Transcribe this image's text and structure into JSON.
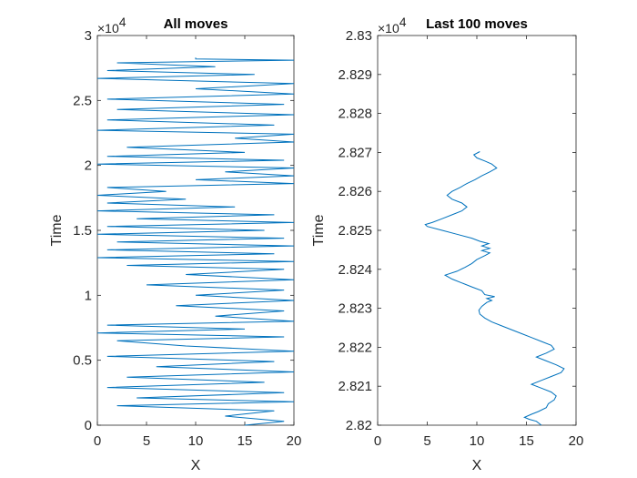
{
  "chart_data": [
    {
      "type": "line",
      "title": "All moves",
      "xlabel": "X",
      "ylabel": "Time",
      "xlim": [
        0,
        20
      ],
      "ylim": [
        0,
        30000
      ],
      "x_ticks": [
        "0",
        "5",
        "10",
        "15",
        "20"
      ],
      "y_ticks": [
        "0",
        "0.5",
        "1",
        "1.5",
        "2",
        "2.5",
        "3"
      ],
      "y_multiplier": "×10",
      "y_exponent": "4",
      "grid": false,
      "line_color": "#0072BD",
      "series": [
        {
          "trace": [
            {
              "y": 0,
              "x": 15
            },
            {
              "y": 300,
              "x": 19
            },
            {
              "y": 700,
              "x": 13
            },
            {
              "y": 1100,
              "x": 18
            },
            {
              "y": 1500,
              "x": 2
            },
            {
              "y": 1800,
              "x": 20
            },
            {
              "y": 2100,
              "x": 4
            },
            {
              "y": 2500,
              "x": 19
            },
            {
              "y": 2900,
              "x": 1
            },
            {
              "y": 3300,
              "x": 17
            },
            {
              "y": 3700,
              "x": 3
            },
            {
              "y": 4100,
              "x": 20
            },
            {
              "y": 4500,
              "x": 6
            },
            {
              "y": 4900,
              "x": 18
            },
            {
              "y": 5300,
              "x": 1
            },
            {
              "y": 5700,
              "x": 20
            },
            {
              "y": 6100,
              "x": 9
            },
            {
              "y": 6500,
              "x": 2
            },
            {
              "y": 6800,
              "x": 19
            },
            {
              "y": 7100,
              "x": 0
            },
            {
              "y": 7400,
              "x": 15
            },
            {
              "y": 7700,
              "x": 1
            },
            {
              "y": 8000,
              "x": 20
            },
            {
              "y": 8400,
              "x": 12
            },
            {
              "y": 8800,
              "x": 19
            },
            {
              "y": 9200,
              "x": 8
            },
            {
              "y": 9600,
              "x": 20
            },
            {
              "y": 10000,
              "x": 10
            },
            {
              "y": 10400,
              "x": 19
            },
            {
              "y": 10800,
              "x": 5
            },
            {
              "y": 11200,
              "x": 20
            },
            {
              "y": 11600,
              "x": 9
            },
            {
              "y": 12000,
              "x": 19
            },
            {
              "y": 12300,
              "x": 3
            },
            {
              "y": 12600,
              "x": 20
            },
            {
              "y": 12900,
              "x": 0
            },
            {
              "y": 13200,
              "x": 18
            },
            {
              "y": 13500,
              "x": 1
            },
            {
              "y": 13800,
              "x": 20
            },
            {
              "y": 14100,
              "x": 2
            },
            {
              "y": 14400,
              "x": 19
            },
            {
              "y": 14700,
              "x": 0
            },
            {
              "y": 15000,
              "x": 17
            },
            {
              "y": 15300,
              "x": 1
            },
            {
              "y": 15600,
              "x": 20
            },
            {
              "y": 15900,
              "x": 4
            },
            {
              "y": 16200,
              "x": 18
            },
            {
              "y": 16500,
              "x": 0
            },
            {
              "y": 16800,
              "x": 14
            },
            {
              "y": 17100,
              "x": 1
            },
            {
              "y": 17400,
              "x": 9
            },
            {
              "y": 17700,
              "x": 0
            },
            {
              "y": 18000,
              "x": 7
            },
            {
              "y": 18300,
              "x": 1
            },
            {
              "y": 18600,
              "x": 20
            },
            {
              "y": 18900,
              "x": 10
            },
            {
              "y": 19200,
              "x": 20
            },
            {
              "y": 19500,
              "x": 13
            },
            {
              "y": 19800,
              "x": 20
            },
            {
              "y": 20100,
              "x": 0
            },
            {
              "y": 20400,
              "x": 19
            },
            {
              "y": 20700,
              "x": 1
            },
            {
              "y": 21000,
              "x": 15
            },
            {
              "y": 21400,
              "x": 3
            },
            {
              "y": 21800,
              "x": 20
            },
            {
              "y": 22100,
              "x": 14
            },
            {
              "y": 22400,
              "x": 20
            },
            {
              "y": 22700,
              "x": 0
            },
            {
              "y": 23100,
              "x": 18
            },
            {
              "y": 23500,
              "x": 1
            },
            {
              "y": 23900,
              "x": 20
            },
            {
              "y": 24300,
              "x": 2
            },
            {
              "y": 24700,
              "x": 19
            },
            {
              "y": 25100,
              "x": 1
            },
            {
              "y": 25500,
              "x": 20
            },
            {
              "y": 25900,
              "x": 10
            },
            {
              "y": 26300,
              "x": 20
            },
            {
              "y": 26700,
              "x": 0
            },
            {
              "y": 27000,
              "x": 16
            },
            {
              "y": 27300,
              "x": 1
            },
            {
              "y": 27600,
              "x": 12
            },
            {
              "y": 27900,
              "x": 2
            },
            {
              "y": 28100,
              "x": 20
            },
            {
              "y": 28200,
              "x": 10
            },
            {
              "y": 28300,
              "x": 10
            }
          ]
        }
      ]
    },
    {
      "type": "line",
      "title": "Last 100 moves",
      "xlabel": "X",
      "ylabel": "Time",
      "xlim": [
        0,
        20
      ],
      "ylim": [
        28200,
        28300
      ],
      "x_ticks": [
        "0",
        "5",
        "10",
        "15",
        "20"
      ],
      "y_ticks": [
        "2.82",
        "2.821",
        "2.822",
        "2.823",
        "2.824",
        "2.825",
        "2.826",
        "2.827",
        "2.828",
        "2.829",
        "2.83"
      ],
      "y_multiplier": "×10",
      "y_exponent": "4",
      "grid": false,
      "line_color": "#0072BD",
      "series": [
        {
          "trace": [
            {
              "y": 28200.0,
              "x": 16.5
            },
            {
              "y": 28201.0,
              "x": 16.0
            },
            {
              "y": 28201.5,
              "x": 15.3
            },
            {
              "y": 28202.0,
              "x": 14.8
            },
            {
              "y": 28202.8,
              "x": 15.5
            },
            {
              "y": 28203.5,
              "x": 16.2
            },
            {
              "y": 28204.5,
              "x": 17.0
            },
            {
              "y": 28205.5,
              "x": 17.2
            },
            {
              "y": 28206.5,
              "x": 17.8
            },
            {
              "y": 28207.5,
              "x": 18.0
            },
            {
              "y": 28208.5,
              "x": 17.5
            },
            {
              "y": 28209.5,
              "x": 16.5
            },
            {
              "y": 28210.5,
              "x": 15.5
            },
            {
              "y": 28211.5,
              "x": 16.5
            },
            {
              "y": 28212.5,
              "x": 17.5
            },
            {
              "y": 28213.5,
              "x": 18.5
            },
            {
              "y": 28214.5,
              "x": 18.8
            },
            {
              "y": 28215.5,
              "x": 18.0
            },
            {
              "y": 28216.5,
              "x": 17.0
            },
            {
              "y": 28217.5,
              "x": 16.0
            },
            {
              "y": 28218.5,
              "x": 17.0
            },
            {
              "y": 28219.5,
              "x": 17.8
            },
            {
              "y": 28220.5,
              "x": 17.5
            },
            {
              "y": 28221.5,
              "x": 16.5
            },
            {
              "y": 28222.5,
              "x": 15.5
            },
            {
              "y": 28223.5,
              "x": 14.5
            },
            {
              "y": 28224.5,
              "x": 13.5
            },
            {
              "y": 28225.5,
              "x": 12.5
            },
            {
              "y": 28226.5,
              "x": 11.5
            },
            {
              "y": 28227.5,
              "x": 10.8
            },
            {
              "y": 28228.5,
              "x": 10.3
            },
            {
              "y": 28229.5,
              "x": 10.2
            },
            {
              "y": 28230.5,
              "x": 10.5
            },
            {
              "y": 28231.5,
              "x": 11.0
            },
            {
              "y": 28232.0,
              "x": 11.5
            },
            {
              "y": 28232.5,
              "x": 11.0
            },
            {
              "y": 28233.0,
              "x": 11.8
            },
            {
              "y": 28233.5,
              "x": 10.8
            },
            {
              "y": 28234.5,
              "x": 10.5
            },
            {
              "y": 28235.5,
              "x": 9.5
            },
            {
              "y": 28236.5,
              "x": 8.5
            },
            {
              "y": 28237.5,
              "x": 7.5
            },
            {
              "y": 28238.5,
              "x": 6.8
            },
            {
              "y": 28239.5,
              "x": 8.0
            },
            {
              "y": 28240.5,
              "x": 8.8
            },
            {
              "y": 28241.5,
              "x": 9.5
            },
            {
              "y": 28242.5,
              "x": 10.0
            },
            {
              "y": 28243.5,
              "x": 10.8
            },
            {
              "y": 28244.2,
              "x": 11.3
            },
            {
              "y": 28244.8,
              "x": 10.5
            },
            {
              "y": 28245.4,
              "x": 11.3
            },
            {
              "y": 28246.0,
              "x": 10.5
            },
            {
              "y": 28246.6,
              "x": 11.2
            },
            {
              "y": 28247.2,
              "x": 10.3
            },
            {
              "y": 28248.0,
              "x": 9.5
            },
            {
              "y": 28249.0,
              "x": 8.0
            },
            {
              "y": 28250.0,
              "x": 6.5
            },
            {
              "y": 28251.0,
              "x": 5.0
            },
            {
              "y": 28251.5,
              "x": 4.8
            },
            {
              "y": 28252.0,
              "x": 5.5
            },
            {
              "y": 28253.0,
              "x": 6.5
            },
            {
              "y": 28254.0,
              "x": 7.5
            },
            {
              "y": 28255.0,
              "x": 8.5
            },
            {
              "y": 28256.0,
              "x": 9.0
            },
            {
              "y": 28257.0,
              "x": 8.5
            },
            {
              "y": 28258.0,
              "x": 7.5
            },
            {
              "y": 28259.0,
              "x": 7.0
            },
            {
              "y": 28260.0,
              "x": 7.5
            },
            {
              "y": 28261.0,
              "x": 8.3
            },
            {
              "y": 28262.0,
              "x": 9.0
            },
            {
              "y": 28263.0,
              "x": 9.8
            },
            {
              "y": 28264.0,
              "x": 10.5
            },
            {
              "y": 28265.0,
              "x": 11.3
            },
            {
              "y": 28266.0,
              "x": 12.0
            },
            {
              "y": 28267.0,
              "x": 11.5
            },
            {
              "y": 28267.8,
              "x": 10.8
            },
            {
              "y": 28268.6,
              "x": 10.0
            },
            {
              "y": 28269.4,
              "x": 9.7
            },
            {
              "y": 28270.2,
              "x": 10.3
            }
          ]
        }
      ]
    }
  ]
}
